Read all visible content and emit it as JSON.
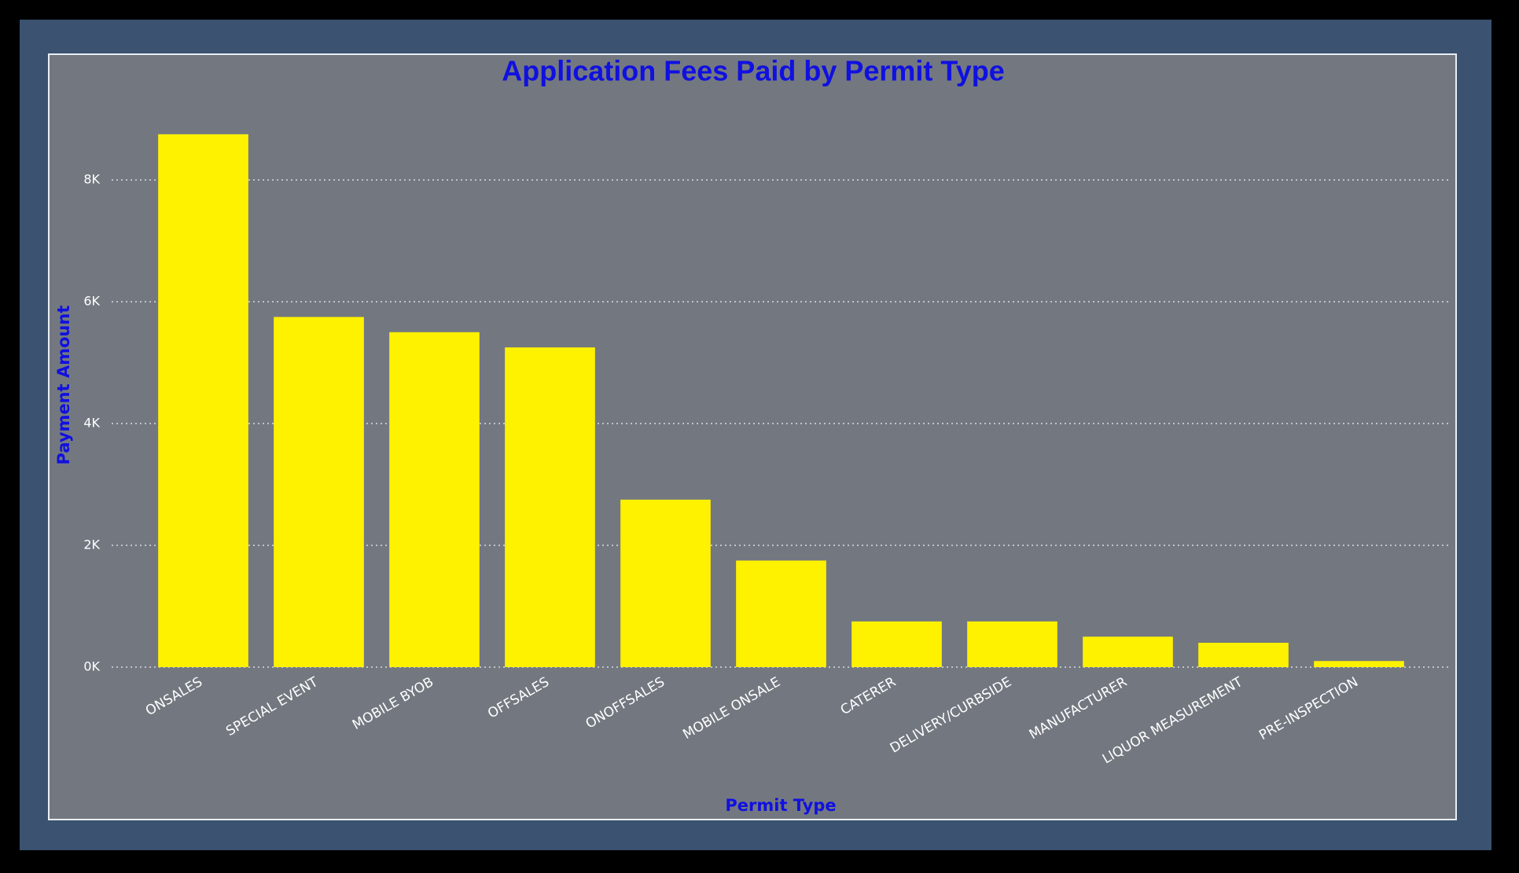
{
  "chart_data": {
    "type": "bar",
    "title": "Application Fees Paid by Permit Type",
    "x_label": "Permit Type",
    "y_label": "Payment Amount",
    "categories": [
      "ONSALES",
      "SPECIAL EVENT",
      "MOBILE BYOB",
      "OFFSALES",
      "ONOFFSALES",
      "MOBILE ONSALE",
      "CATERER",
      "DELIVERY/CURBSIDE",
      "MANUFACTURER",
      "LIQUOR MEASUREMENT",
      "PRE-INSPECTION"
    ],
    "values": [
      8750,
      5750,
      5500,
      5250,
      2750,
      1750,
      750,
      750,
      500,
      400,
      100
    ],
    "color": "#fff200",
    "ylim": [
      0,
      9000
    ],
    "yticks": [
      {
        "value": 0,
        "label": "0K"
      },
      {
        "value": 2000,
        "label": "2K"
      },
      {
        "value": 4000,
        "label": "4K"
      },
      {
        "value": 6000,
        "label": "6K"
      },
      {
        "value": 8000,
        "label": "8K"
      }
    ],
    "grid": true
  }
}
